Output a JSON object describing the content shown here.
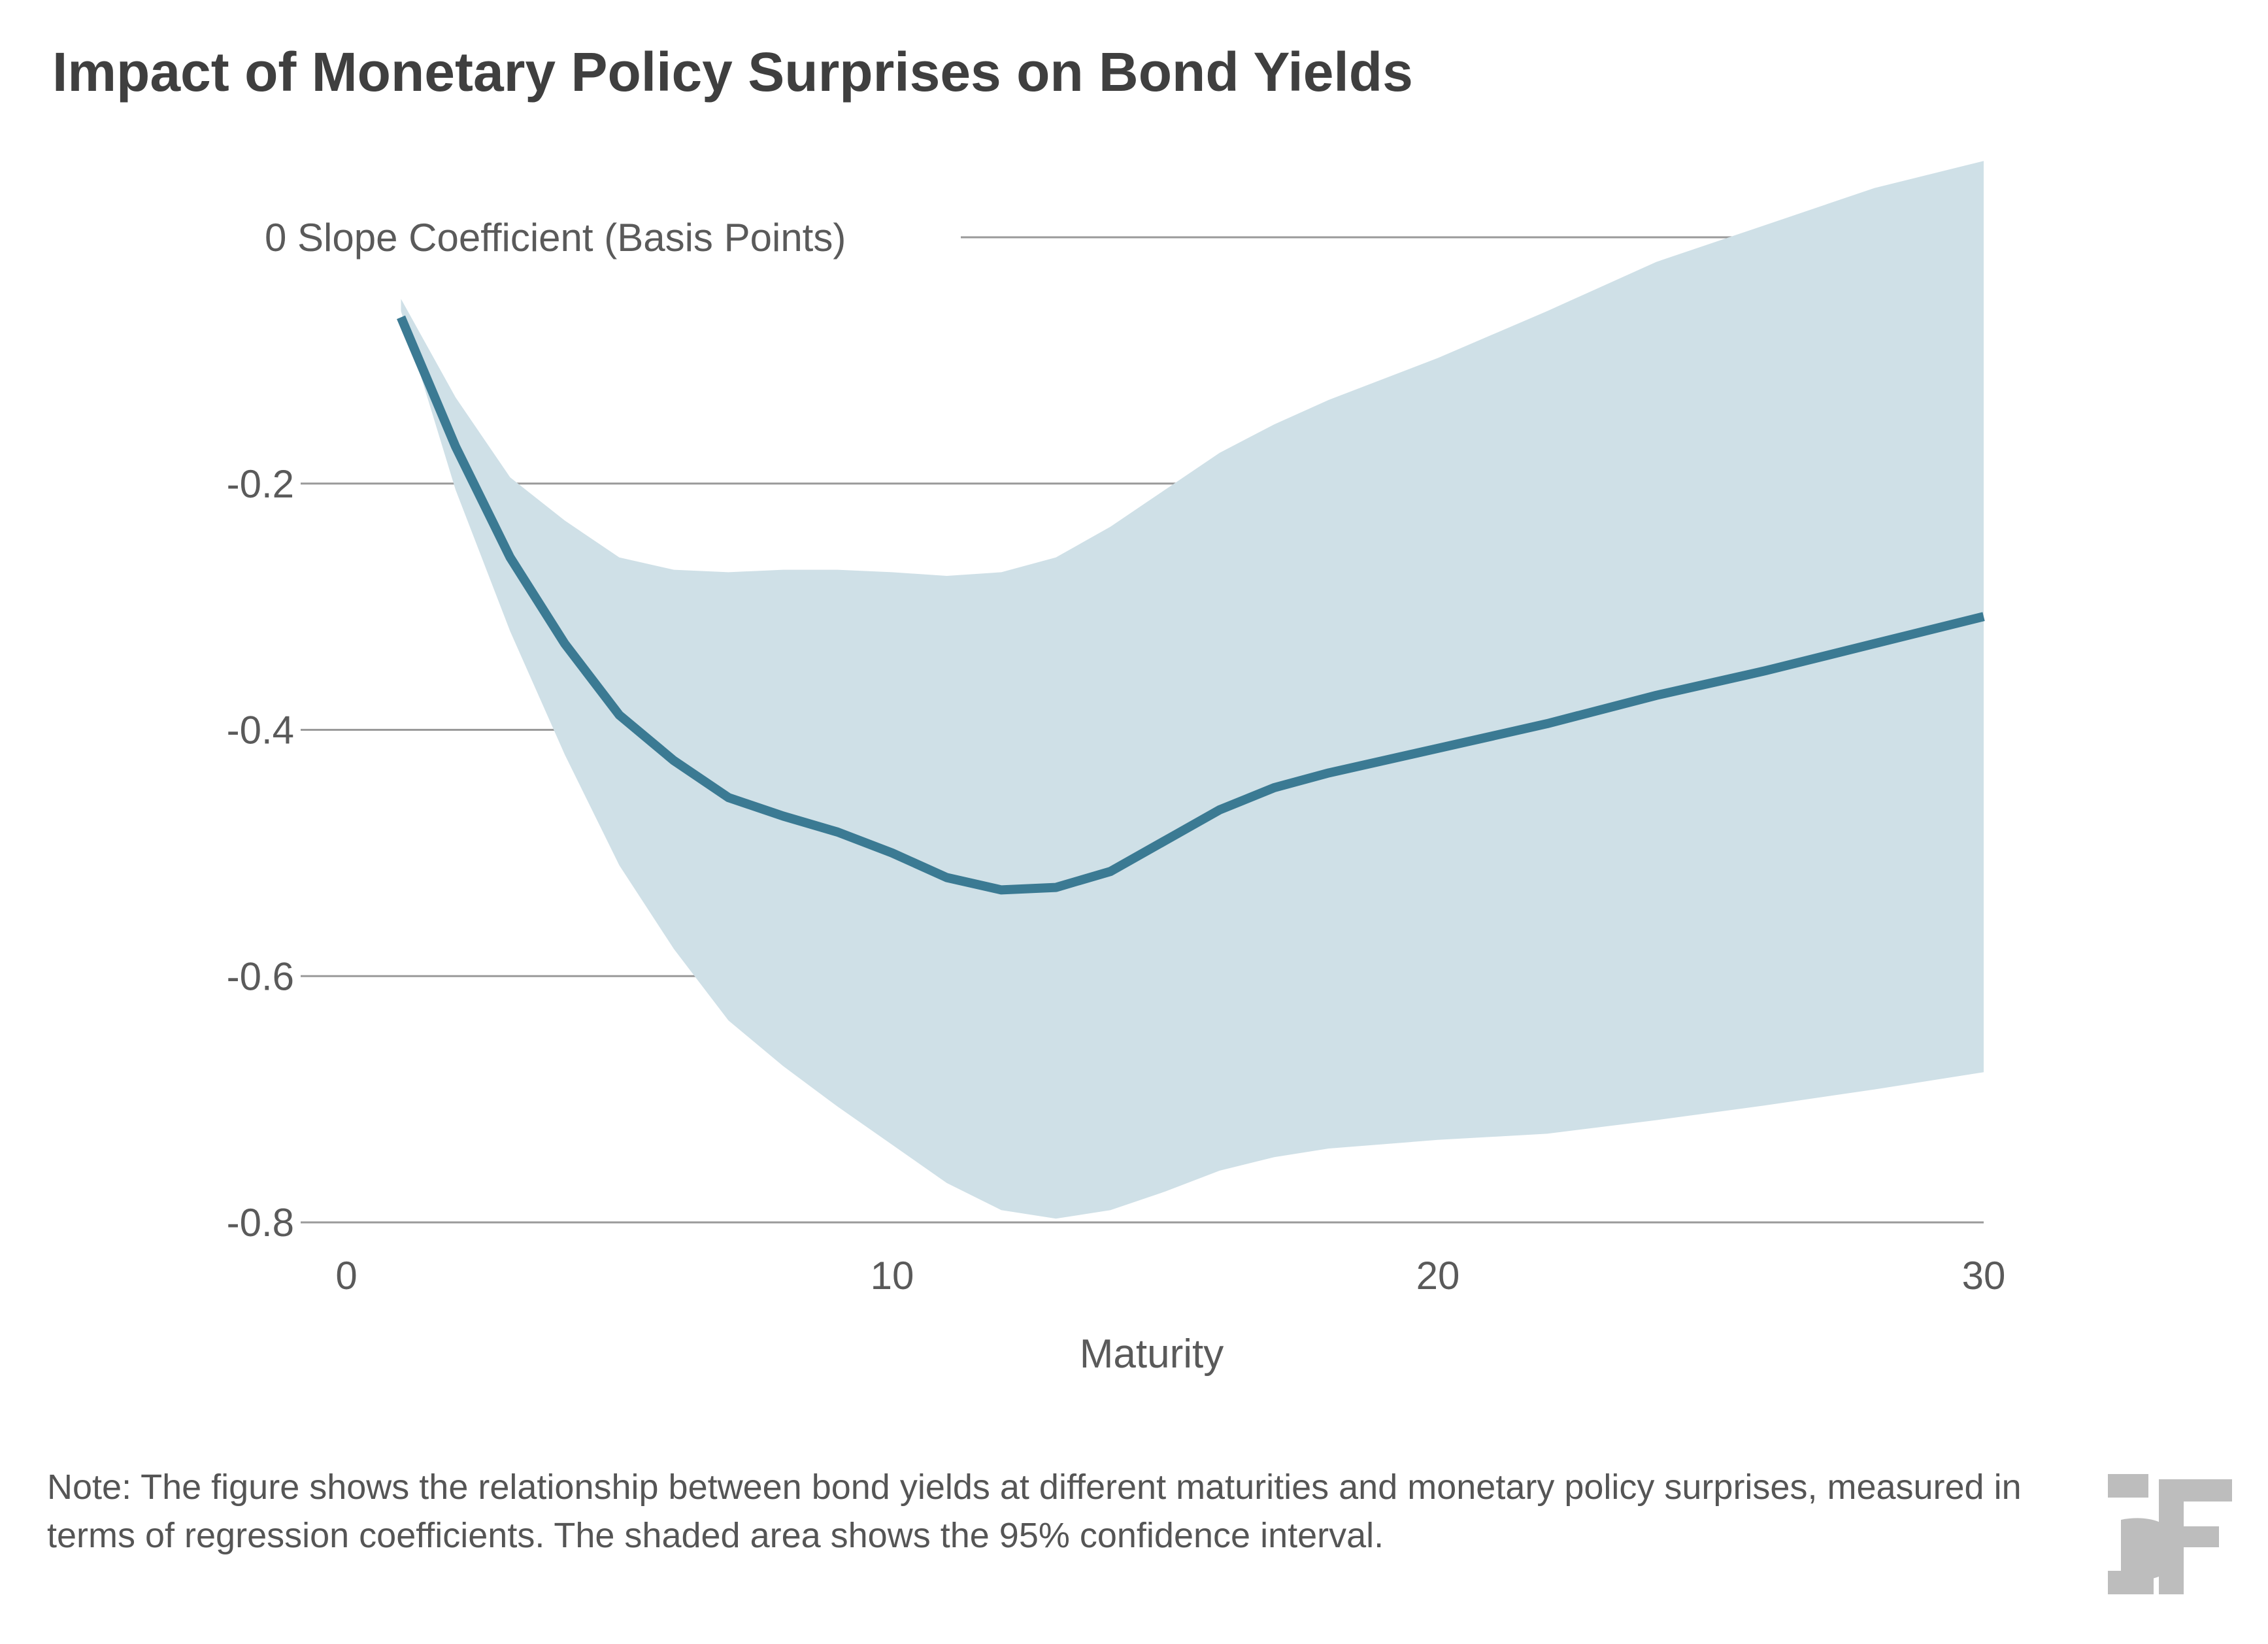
{
  "chart_data": {
    "type": "line",
    "title": "Impact of Monetary Policy Surprises on Bond Yields",
    "ylabel": "Slope Coefficient (Basis Points)",
    "xlabel": "Maturity",
    "xlim": [
      0,
      30
    ],
    "ylim": [
      -0.8,
      0.0
    ],
    "xticks": [
      0,
      10,
      20,
      30
    ],
    "yticks": [
      {
        "value": 0,
        "label": "0 Slope Coefficient (Basis Points)"
      },
      {
        "value": -0.2,
        "label": "-0.2"
      },
      {
        "value": -0.4,
        "label": "-0.4"
      },
      {
        "value": -0.6,
        "label": "-0.6"
      },
      {
        "value": -0.8,
        "label": "-0.8"
      }
    ],
    "grid": "horizontal",
    "series": [
      {
        "role": "estimate",
        "color": "#3b7a93",
        "x": [
          1,
          2,
          3,
          4,
          5,
          6,
          7,
          8,
          9,
          10,
          11,
          12,
          13,
          14,
          15,
          16,
          17,
          18,
          20,
          22,
          24,
          26,
          28,
          30
        ],
        "y": [
          -0.065,
          -0.17,
          -0.26,
          -0.33,
          -0.388,
          -0.425,
          -0.455,
          -0.47,
          -0.483,
          -0.5,
          -0.52,
          -0.53,
          -0.528,
          -0.515,
          -0.49,
          -0.465,
          -0.447,
          -0.435,
          -0.415,
          -0.395,
          -0.372,
          -0.352,
          -0.33,
          -0.308
        ]
      }
    ],
    "band": {
      "role": "95% confidence interval",
      "color": "#cfe0e7",
      "x": [
        1,
        2,
        3,
        4,
        5,
        6,
        7,
        8,
        9,
        10,
        11,
        12,
        13,
        14,
        15,
        16,
        17,
        18,
        20,
        22,
        24,
        26,
        28,
        30
      ],
      "upper": [
        -0.05,
        -0.13,
        -0.195,
        -0.23,
        -0.26,
        -0.27,
        -0.272,
        -0.27,
        -0.27,
        -0.272,
        -0.275,
        -0.272,
        -0.26,
        -0.235,
        -0.205,
        -0.175,
        -0.152,
        -0.132,
        -0.098,
        -0.06,
        -0.02,
        0.01,
        0.04,
        0.062
      ],
      "lower": [
        -0.06,
        -0.205,
        -0.32,
        -0.42,
        -0.51,
        -0.578,
        -0.636,
        -0.673,
        -0.706,
        -0.737,
        -0.768,
        -0.79,
        -0.797,
        -0.79,
        -0.775,
        -0.758,
        -0.747,
        -0.74,
        -0.733,
        -0.728,
        -0.717,
        -0.705,
        -0.692,
        -0.678
      ]
    }
  },
  "note": "Note: The figure shows the relationship between bond yields at different maturities and monetary policy surprises, measured in terms of regression coefficients. The shaded area shows the 95% confidence interval.",
  "logo_text": "BF",
  "colors": {
    "title": "#3f3f3f",
    "grid": "#9a9a9a",
    "line": "#3b7a93",
    "band": "#cfe0e7",
    "logo": "#bdbdbd"
  }
}
